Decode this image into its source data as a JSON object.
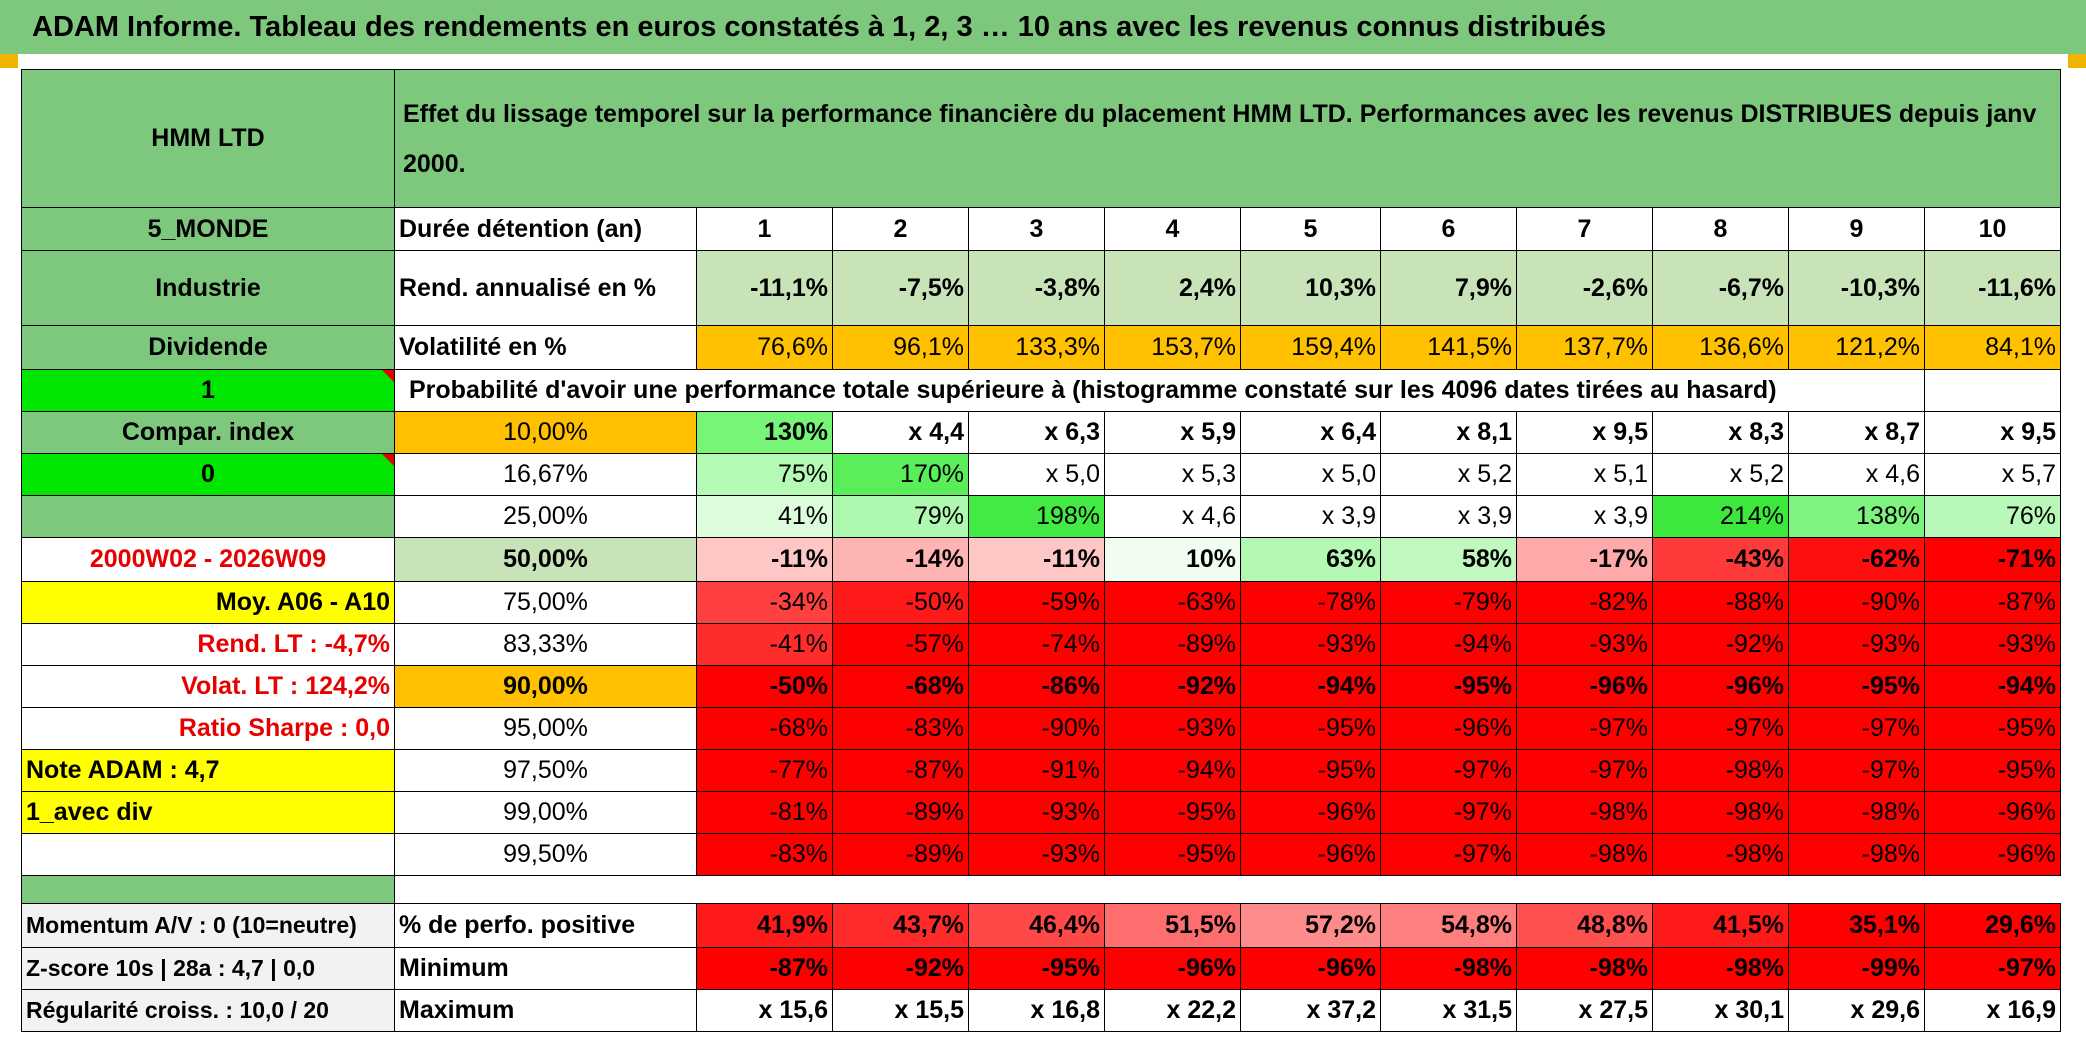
{
  "banner": {
    "title": "ADAM Informe. Tableau des rendements en euros constatés à 1, 2, 3 … 10 ans avec les revenus connus distribués"
  },
  "header": {
    "fund_name": "HMM LTD",
    "description": "Effet du lissage temporel sur la performance financière du placement HMM LTD. Performances avec les revenus DISTRIBUES depuis janv 2000."
  },
  "sidebar": {
    "zone": "5_MONDE",
    "sector": "Industrie",
    "dividend": "Dividende",
    "flag_value": "1",
    "compar_index": "Compar. index",
    "flag_zero": "0",
    "period": "2000W02 - 2026W09",
    "moy": "Moy. A06 - A10",
    "rend_lt": "Rend. LT :    -4,7%",
    "volat_lt": "Volat. LT :   124,2%",
    "sharpe": "Ratio Sharpe :    0,0",
    "note": "Note ADAM : 4,7",
    "avec_div": "1_avec div"
  },
  "table": {
    "duration_label": "Durée détention (an)",
    "years": [
      "1",
      "2",
      "3",
      "4",
      "5",
      "6",
      "7",
      "8",
      "9",
      "10"
    ],
    "rend_label": "Rend. annualisé en %",
    "rend_values": [
      "-11,1%",
      "-7,5%",
      "-3,8%",
      "2,4%",
      "10,3%",
      "7,9%",
      "-2,6%",
      "-6,7%",
      "-10,3%",
      "-11,6%"
    ],
    "vol_label": "Volatilité en %",
    "vol_values": [
      "76,6%",
      "96,1%",
      "133,3%",
      "153,7%",
      "159,4%",
      "141,5%",
      "137,7%",
      "136,6%",
      "121,2%",
      "84,1%"
    ],
    "prob_header": "Probabilité d'avoir une performance totale supérieure à (histogramme constaté sur les 4096 dates tirées au hasard)",
    "prob_rows": [
      {
        "pct": "10,00%",
        "values": [
          "130%",
          "x 4,4",
          "x 6,3",
          "x 5,9",
          "x 6,4",
          "x 8,1",
          "x 9,5",
          "x 8,3",
          "x 8,7",
          "x 9,5"
        ]
      },
      {
        "pct": "16,67%",
        "values": [
          "75%",
          "170%",
          "x 5,0",
          "x 5,3",
          "x 5,0",
          "x 5,2",
          "x 5,1",
          "x 5,2",
          "x 4,6",
          "x 5,7"
        ]
      },
      {
        "pct": "25,00%",
        "values": [
          "41%",
          "79%",
          "198%",
          "x 4,6",
          "x 3,9",
          "x 3,9",
          "x 3,9",
          "214%",
          "138%",
          "76%"
        ]
      },
      {
        "pct": "50,00%",
        "values": [
          "-11%",
          "-14%",
          "-11%",
          "10%",
          "63%",
          "58%",
          "-17%",
          "-43%",
          "-62%",
          "-71%"
        ]
      },
      {
        "pct": "75,00%",
        "values": [
          "-34%",
          "-50%",
          "-59%",
          "-63%",
          "-78%",
          "-79%",
          "-82%",
          "-88%",
          "-90%",
          "-87%"
        ]
      },
      {
        "pct": "83,33%",
        "values": [
          "-41%",
          "-57%",
          "-74%",
          "-89%",
          "-93%",
          "-94%",
          "-93%",
          "-92%",
          "-93%",
          "-93%"
        ]
      },
      {
        "pct": "90,00%",
        "values": [
          "-50%",
          "-68%",
          "-86%",
          "-92%",
          "-94%",
          "-95%",
          "-96%",
          "-96%",
          "-95%",
          "-94%"
        ]
      },
      {
        "pct": "95,00%",
        "values": [
          "-68%",
          "-83%",
          "-90%",
          "-93%",
          "-95%",
          "-96%",
          "-97%",
          "-97%",
          "-97%",
          "-95%"
        ]
      },
      {
        "pct": "97,50%",
        "values": [
          "-77%",
          "-87%",
          "-91%",
          "-94%",
          "-95%",
          "-97%",
          "-97%",
          "-98%",
          "-97%",
          "-95%"
        ]
      },
      {
        "pct": "99,00%",
        "values": [
          "-81%",
          "-89%",
          "-93%",
          "-95%",
          "-96%",
          "-97%",
          "-98%",
          "-98%",
          "-98%",
          "-96%"
        ]
      },
      {
        "pct": "99,50%",
        "values": [
          "-83%",
          "-89%",
          "-93%",
          "-95%",
          "-96%",
          "-97%",
          "-98%",
          "-98%",
          "-98%",
          "-96%"
        ]
      }
    ],
    "bottom_rows": [
      {
        "left": "Momentum A/V : 0 (10=neutre)",
        "label": "% de perfo. positive",
        "values": [
          "41,9%",
          "43,7%",
          "46,4%",
          "51,5%",
          "57,2%",
          "54,8%",
          "48,8%",
          "41,5%",
          "35,1%",
          "29,6%"
        ]
      },
      {
        "left": "Z-score 10s | 28a : 4,7 | 0,0",
        "label": "Minimum",
        "values": [
          "-87%",
          "-92%",
          "-95%",
          "-96%",
          "-96%",
          "-98%",
          "-98%",
          "-98%",
          "-99%",
          "-97%"
        ]
      },
      {
        "left": "Régularité croiss. : 10,0 / 20",
        "label": "Maximum",
        "values": [
          "x 15,6",
          "x 15,5",
          "x 16,8",
          "x 22,2",
          "x 37,2",
          "x 31,5",
          "x 27,5",
          "x 30,1",
          "x 29,6",
          "x 16,9"
        ]
      }
    ]
  },
  "colors": {
    "header_green": "#7ec87e",
    "light_green": "#c7e3b7",
    "orange": "#ffc000",
    "yellow": "#ffff00",
    "bright_green": "#00e600",
    "red": "#ff0000",
    "red_text": "#e60000"
  },
  "cell_colors": {
    "prob_rows": [
      [
        "#76f576",
        "#ffffff",
        "#ffffff",
        "#ffffff",
        "#ffffff",
        "#ffffff",
        "#ffffff",
        "#ffffff",
        "#ffffff",
        "#ffffff"
      ],
      [
        "#b4fab4",
        "#5aee5a",
        "#ffffff",
        "#ffffff",
        "#ffffff",
        "#ffffff",
        "#ffffff",
        "#ffffff",
        "#ffffff",
        "#ffffff"
      ],
      [
        "#dcfcdc",
        "#aff8af",
        "#44ea44",
        "#ffffff",
        "#ffffff",
        "#ffffff",
        "#ffffff",
        "#3ce83c",
        "#7ff37f",
        "#b8f8b8"
      ],
      [
        "#ffc6c6",
        "#ffb4b4",
        "#ffc6c6",
        "#f2fdf2",
        "#b4f8b4",
        "#c0f8c0",
        "#ffaaaa",
        "#ff3a3a",
        "#ff0e0e",
        "#ff0000"
      ],
      [
        "#ff4040",
        "#ff1a1a",
        "#ff0000",
        "#ff0000",
        "#ff0000",
        "#ff0000",
        "#ff0000",
        "#ff0000",
        "#ff0000",
        "#ff0000"
      ],
      [
        "#ff2c2c",
        "#ff0000",
        "#ff0000",
        "#ff0000",
        "#ff0000",
        "#ff0000",
        "#ff0000",
        "#ff0000",
        "#ff0000",
        "#ff0000"
      ],
      [
        "#ff0000",
        "#ff0000",
        "#ff0000",
        "#ff0000",
        "#ff0000",
        "#ff0000",
        "#ff0000",
        "#ff0000",
        "#ff0000",
        "#ff0000"
      ],
      [
        "#ff0000",
        "#ff0000",
        "#ff0000",
        "#ff0000",
        "#ff0000",
        "#ff0000",
        "#ff0000",
        "#ff0000",
        "#ff0000",
        "#ff0000"
      ],
      [
        "#ff0000",
        "#ff0000",
        "#ff0000",
        "#ff0000",
        "#ff0000",
        "#ff0000",
        "#ff0000",
        "#ff0000",
        "#ff0000",
        "#ff0000"
      ],
      [
        "#ff0000",
        "#ff0000",
        "#ff0000",
        "#ff0000",
        "#ff0000",
        "#ff0000",
        "#ff0000",
        "#ff0000",
        "#ff0000",
        "#ff0000"
      ],
      [
        "#ff0000",
        "#ff0000",
        "#ff0000",
        "#ff0000",
        "#ff0000",
        "#ff0000",
        "#ff0000",
        "#ff0000",
        "#ff0000",
        "#ff0000"
      ]
    ],
    "bottom_rows": [
      [
        "#ff1a1a",
        "#ff2a2a",
        "#ff4848",
        "#ff6e6e",
        "#ff8c8c",
        "#ff7e7e",
        "#ff5050",
        "#ff1a1a",
        "#ff0000",
        "#ff0000"
      ],
      [
        "#ff0000",
        "#ff0000",
        "#ff0000",
        "#ff0000",
        "#ff0000",
        "#ff0000",
        "#ff0000",
        "#ff0000",
        "#ff0000",
        "#ff0000"
      ],
      [
        "#ffffff",
        "#ffffff",
        "#ffffff",
        "#ffffff",
        "#ffffff",
        "#ffffff",
        "#ffffff",
        "#ffffff",
        "#ffffff",
        "#ffffff"
      ]
    ]
  }
}
